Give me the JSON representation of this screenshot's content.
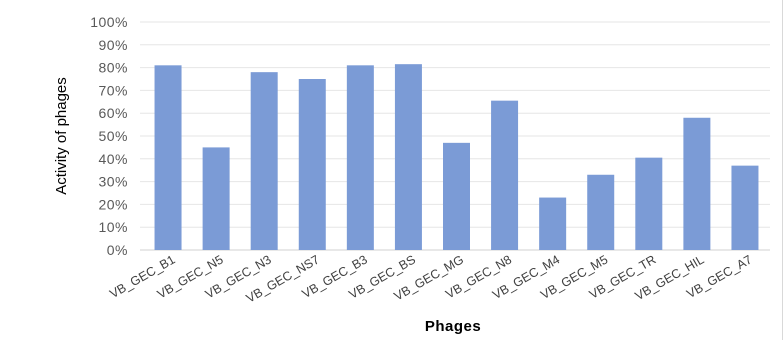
{
  "chart_data": {
    "type": "bar",
    "title": "",
    "xlabel": "Phages",
    "ylabel": "Activity of phages",
    "categories": [
      "VB_GEC_B1",
      "VB_GEC_N5",
      "VB_GEC_N3",
      "VB_GEC_NS7",
      "VB_GEC_B3",
      "VB_GEC_BS",
      "VB_GEC_MG",
      "VB_GEC_N8",
      "VB_GEC_M4",
      "VB_GEC_M5",
      "VB_GEC_TR",
      "VB_GEC_HIL",
      "VB_GEC_A7"
    ],
    "values": [
      81,
      45,
      78,
      75,
      81,
      81.5,
      47,
      65.5,
      23,
      33,
      40.5,
      58,
      37
    ],
    "ylim": [
      0,
      100
    ],
    "yticks": [
      "0%",
      "10%",
      "20%",
      "30%",
      "40%",
      "50%",
      "60%",
      "70%",
      "80%",
      "90%",
      "100%"
    ],
    "bar_color": "#7b9bd6",
    "grid": true,
    "legend": "none"
  }
}
